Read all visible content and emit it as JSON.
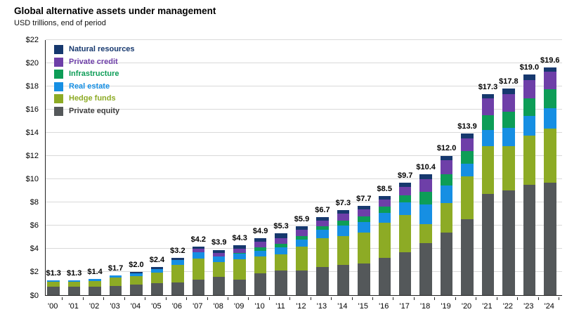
{
  "title": "Global alternative assets under management",
  "subtitle": "USD trillions, end of period",
  "chart_data": {
    "type": "bar",
    "stacked": true,
    "grid": true,
    "legend_position": "top-left-inside",
    "xlabel": "",
    "ylabel": "USD trillions",
    "ylim": [
      0,
      22
    ],
    "ytick_step": 2,
    "ytick_labels": [
      "$0",
      "$2",
      "$4",
      "$6",
      "$8",
      "$10",
      "$12",
      "$14",
      "$16",
      "$18",
      "$20",
      "$22"
    ],
    "categories": [
      "'00",
      "'01",
      "'02",
      "'03",
      "'04",
      "'05",
      "'06",
      "'07",
      "'08",
      "'09",
      "'10",
      "'11",
      "'12",
      "'13",
      "'14",
      "'15",
      "'16",
      "'17",
      "'18",
      "'19",
      "'20",
      "'21",
      "'22",
      "'23",
      "'24"
    ],
    "totals_labels": [
      "$1.3",
      "$1.3",
      "$1.4",
      "$1.7",
      "$2.0",
      "$2.4",
      "$3.2",
      "$4.2",
      "$3.9",
      "$4.3",
      "$4.9",
      "$5.3",
      "$5.9",
      "$6.7",
      "$7.3",
      "$7.7",
      "$8.5",
      "$9.7",
      "$10.4",
      "$12.0",
      "$13.9",
      "$17.3",
      "$17.8",
      "$19.0",
      "$19.6"
    ],
    "totals": [
      1.3,
      1.3,
      1.4,
      1.7,
      2.0,
      2.4,
      3.2,
      4.2,
      3.9,
      4.3,
      4.9,
      5.3,
      5.9,
      6.7,
      7.3,
      7.7,
      8.5,
      9.7,
      10.4,
      12.0,
      13.9,
      17.3,
      17.8,
      19.0,
      19.6
    ],
    "series": [
      {
        "name": "Private equity",
        "key": "private-equity",
        "color": "#54585a",
        "text_color": "#3d3d3d",
        "values": [
          0.7,
          0.7,
          0.75,
          0.8,
          0.9,
          1.05,
          1.1,
          1.35,
          1.55,
          1.35,
          1.9,
          2.1,
          2.1,
          2.4,
          2.6,
          2.7,
          3.2,
          3.7,
          4.5,
          5.4,
          6.5,
          8.7,
          9.0,
          9.5,
          9.7
        ]
      },
      {
        "name": "Hedge funds",
        "key": "hedge-funds",
        "color": "#8dab25",
        "text_color": "#8dab25",
        "values": [
          0.45,
          0.45,
          0.45,
          0.7,
          0.75,
          0.9,
          1.5,
          1.8,
          1.3,
          1.75,
          1.4,
          1.4,
          2.1,
          2.5,
          2.5,
          2.7,
          3.0,
          3.2,
          1.6,
          2.5,
          3.7,
          4.1,
          3.8,
          4.2,
          4.6
        ]
      },
      {
        "name": "Real estate",
        "key": "real-estate",
        "color": "#168fe3",
        "text_color": "#168fe3",
        "values": [
          0.15,
          0.15,
          0.2,
          0.2,
          0.25,
          0.3,
          0.4,
          0.55,
          0.5,
          0.45,
          0.5,
          0.6,
          0.6,
          0.7,
          0.9,
          0.9,
          0.9,
          1.1,
          1.7,
          1.5,
          1.1,
          1.4,
          1.6,
          1.7,
          1.8
        ]
      },
      {
        "name": "Infrastructure",
        "key": "infrastructure",
        "color": "#0d9d57",
        "text_color": "#0d9d57",
        "values": [
          0.0,
          0.0,
          0.0,
          0.0,
          0.0,
          0.0,
          0.0,
          0.0,
          0.0,
          0.1,
          0.3,
          0.3,
          0.3,
          0.3,
          0.4,
          0.45,
          0.5,
          0.6,
          1.1,
          1.0,
          1.1,
          1.3,
          1.4,
          1.5,
          1.6
        ]
      },
      {
        "name": "Private credit",
        "key": "private-credit",
        "color": "#6e3fa8",
        "text_color": "#6e3fa8",
        "values": [
          0.0,
          0.0,
          0.0,
          0.0,
          0.0,
          0.0,
          0.0,
          0.3,
          0.3,
          0.35,
          0.5,
          0.5,
          0.5,
          0.5,
          0.6,
          0.6,
          0.6,
          0.7,
          1.1,
          1.2,
          1.1,
          1.4,
          1.5,
          1.6,
          1.5
        ]
      },
      {
        "name": "Natural resources",
        "key": "natural-resources",
        "color": "#16386e",
        "text_color": "#16386e",
        "values": [
          0.0,
          0.0,
          0.0,
          0.0,
          0.1,
          0.15,
          0.2,
          0.2,
          0.25,
          0.3,
          0.3,
          0.4,
          0.3,
          0.3,
          0.3,
          0.35,
          0.3,
          0.4,
          0.4,
          0.4,
          0.4,
          0.4,
          0.5,
          0.5,
          0.4
        ]
      }
    ],
    "legend_order": [
      "Natural resources",
      "Private credit",
      "Infrastructure",
      "Real estate",
      "Hedge funds",
      "Private equity"
    ]
  }
}
